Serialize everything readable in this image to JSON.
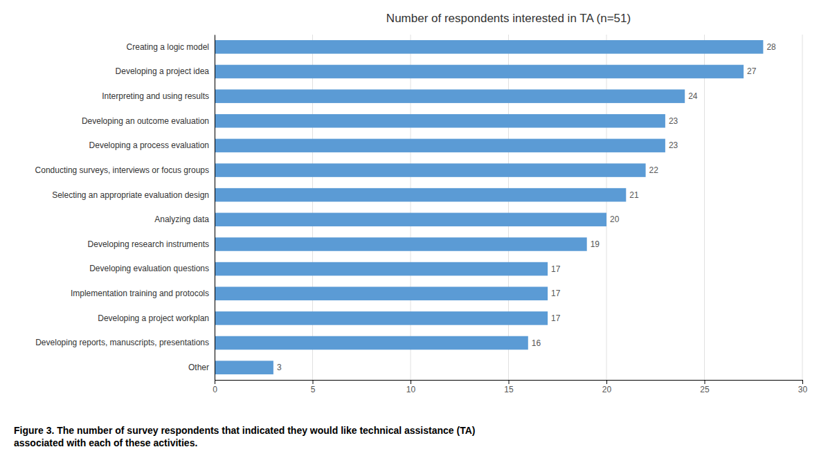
{
  "chart_data": {
    "type": "bar",
    "orientation": "horizontal",
    "title": "Number of respondents interested in TA (n=51)",
    "categories": [
      "Other",
      "Developing reports, manuscripts, presentations",
      "Developing a project workplan",
      "Implementation training and protocols",
      "Developing evaluation questions",
      "Developing research instruments",
      "Analyzing data",
      "Selecting an appropriate evaluation design",
      "Conducting surveys, interviews or focus groups",
      "Developing a process evaluation",
      "Developing an outcome evaluation",
      "Interpreting and using results",
      "Developing a project idea",
      "Creating a logic model"
    ],
    "values": [
      3,
      16,
      17,
      17,
      17,
      19,
      20,
      21,
      22,
      23,
      23,
      24,
      27,
      28
    ],
    "color": "#5B9BD5",
    "xlim": [
      0,
      30
    ],
    "xticks": [
      0,
      5,
      10,
      15,
      20,
      25,
      30
    ],
    "grid": true,
    "data_labels": true,
    "annotations": [
      "Figure 3. The number of survey respondents that indicated they would like technical assistance (TA)",
      "associated with each of these activities."
    ]
  }
}
